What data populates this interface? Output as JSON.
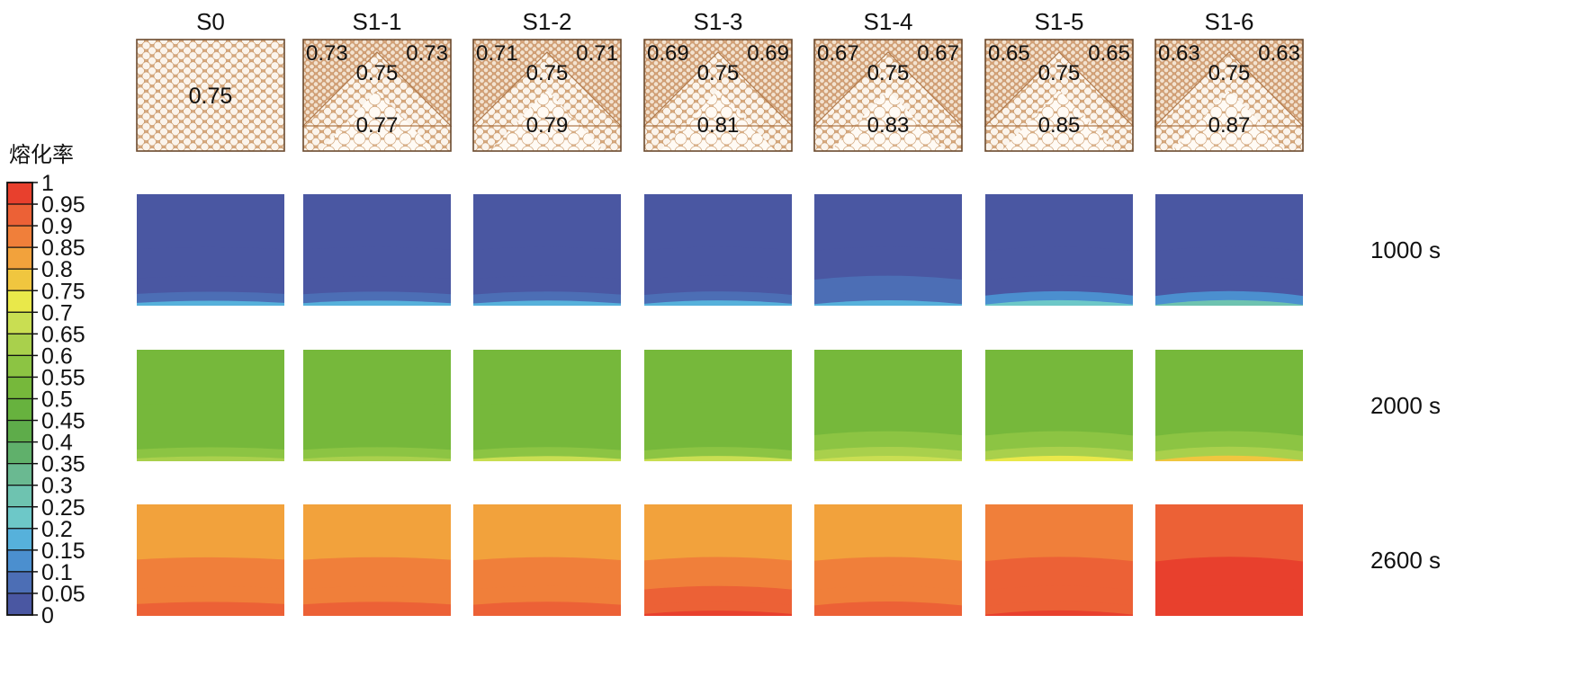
{
  "legend": {
    "title": "熔化率",
    "ticks": [
      "1",
      "0.95",
      "0.9",
      "0.85",
      "0.8",
      "0.75",
      "0.7",
      "0.65",
      "0.6",
      "0.55",
      "0.5",
      "0.45",
      "0.4",
      "0.35",
      "0.3",
      "0.25",
      "0.2",
      "0.15",
      "0.1",
      "0.05",
      "0"
    ],
    "colors": [
      "#e8402d",
      "#ec6136",
      "#f07f3a",
      "#f2a23c",
      "#f0c63f",
      "#e9e84a",
      "#c9de52",
      "#a9d04c",
      "#8cc443",
      "#76b83b",
      "#67b23e",
      "#5eac4a",
      "#60b06b",
      "#6ab991",
      "#6ec3b0",
      "#6dc8c8",
      "#56b1db",
      "#4b8fcf",
      "#4c6eb5",
      "#4a57a2",
      "#3f4c94"
    ]
  },
  "schemes": [
    {
      "name": "S0",
      "uniform": true,
      "center": "0.75"
    },
    {
      "name": "S1-1",
      "uniform": false,
      "corner_left": "0.73",
      "corner_right": "0.73",
      "middle": "0.75",
      "bottom": "0.77"
    },
    {
      "name": "S1-2",
      "uniform": false,
      "corner_left": "0.71",
      "corner_right": "0.71",
      "middle": "0.75",
      "bottom": "0.79"
    },
    {
      "name": "S1-3",
      "uniform": false,
      "corner_left": "0.69",
      "corner_right": "0.69",
      "middle": "0.75",
      "bottom": "0.81"
    },
    {
      "name": "S1-4",
      "uniform": false,
      "corner_left": "0.67",
      "corner_right": "0.67",
      "middle": "0.75",
      "bottom": "0.83"
    },
    {
      "name": "S1-5",
      "uniform": false,
      "corner_left": "0.65",
      "corner_right": "0.65",
      "middle": "0.75",
      "bottom": "0.85"
    },
    {
      "name": "S1-6",
      "uniform": false,
      "corner_left": "0.63",
      "corner_right": "0.63",
      "middle": "0.75",
      "bottom": "0.87"
    }
  ],
  "time_rows": [
    {
      "label": "1000 s",
      "fields": [
        [
          0.05,
          0.05,
          0.05,
          0.1,
          0.2
        ],
        [
          0.05,
          0.05,
          0.05,
          0.1,
          0.2
        ],
        [
          0.05,
          0.05,
          0.05,
          0.1,
          0.2
        ],
        [
          0.05,
          0.05,
          0.05,
          0.1,
          0.2
        ],
        [
          0.05,
          0.05,
          0.1,
          0.1,
          0.2
        ],
        [
          0.05,
          0.05,
          0.05,
          0.15,
          0.25
        ],
        [
          0.05,
          0.05,
          0.05,
          0.15,
          0.3
        ]
      ]
    },
    {
      "label": "2000 s",
      "fields": [
        [
          0.55,
          0.55,
          0.55,
          0.6,
          0.65
        ],
        [
          0.55,
          0.55,
          0.55,
          0.6,
          0.65
        ],
        [
          0.55,
          0.55,
          0.55,
          0.6,
          0.7
        ],
        [
          0.55,
          0.55,
          0.55,
          0.6,
          0.7
        ],
        [
          0.55,
          0.55,
          0.6,
          0.65,
          0.7
        ],
        [
          0.55,
          0.55,
          0.6,
          0.65,
          0.75
        ],
        [
          0.55,
          0.55,
          0.6,
          0.65,
          0.8
        ]
      ]
    },
    {
      "label": "2600 s",
      "fields": [
        [
          0.85,
          0.9,
          0.9,
          0.95,
          0.95
        ],
        [
          0.85,
          0.9,
          0.9,
          0.95,
          0.95
        ],
        [
          0.85,
          0.9,
          0.9,
          0.95,
          0.95
        ],
        [
          0.85,
          0.9,
          0.95,
          0.95,
          1
        ],
        [
          0.85,
          0.9,
          0.9,
          0.95,
          0.95
        ],
        [
          0.9,
          0.95,
          0.95,
          0.95,
          1
        ],
        [
          0.95,
          1,
          1,
          1,
          1
        ]
      ]
    }
  ]
}
